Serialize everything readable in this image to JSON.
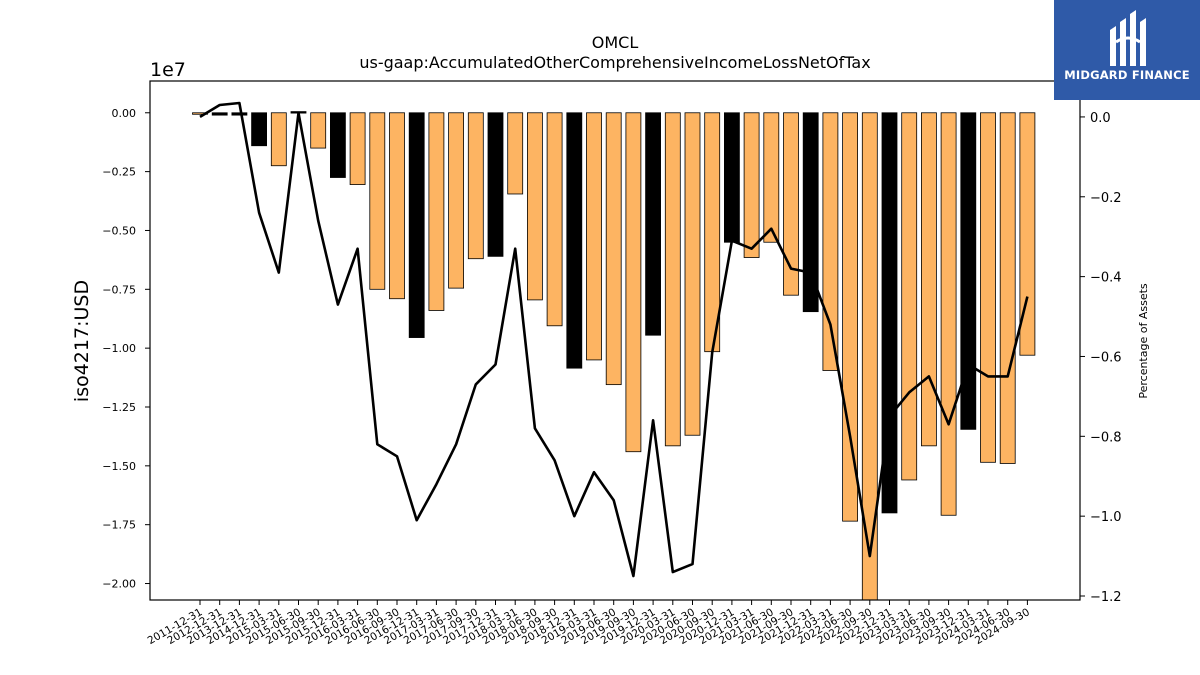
{
  "chart_data": {
    "type": "bar",
    "title": "OMCL",
    "subtitle": "us-gaap:AccumulatedOtherComprehensiveIncomeLossNetOfTax",
    "ylabel": "iso4217:USD",
    "y2label": "Percentage of Assets",
    "y_multiplier": "1e7",
    "ylim": [
      -20.7,
      1.35
    ],
    "y2lim": [
      -1.21,
      0.09
    ],
    "yticks": [
      "0.00",
      "−0.25",
      "−0.50",
      "−0.75",
      "−1.00",
      "−1.25",
      "−1.50",
      "−1.75",
      "−2.00"
    ],
    "y2ticks": [
      "0.0",
      "−0.2",
      "−0.4",
      "−0.6",
      "−0.8",
      "−1.0",
      "−1.2"
    ],
    "colors": {
      "orange": "#fdb462",
      "black": "#000000",
      "line": "#000000"
    },
    "categories": [
      "2011-12-31",
      "2012-12-31",
      "2013-12-31",
      "2014-12-31",
      "2015-03-31",
      "2015-06-30",
      "2015-09-30",
      "2015-12-31",
      "2016-03-31",
      "2016-06-30",
      "2016-09-30",
      "2016-12-31",
      "2017-03-31",
      "2017-06-30",
      "2017-09-30",
      "2017-12-31",
      "2018-03-31",
      "2018-06-30",
      "2018-09-30",
      "2018-12-31",
      "2019-03-31",
      "2019-06-30",
      "2019-09-30",
      "2019-12-31",
      "2020-03-31",
      "2020-06-30",
      "2020-09-30",
      "2020-12-31",
      "2021-03-31",
      "2021-06-30",
      "2021-09-30",
      "2021-12-31",
      "2022-03-31",
      "2022-06-30",
      "2022-09-30",
      "2022-12-31",
      "2023-03-31",
      "2023-06-30",
      "2023-09-30",
      "2023-12-31",
      "2024-03-31",
      "2024-06-30",
      "2024-09-30"
    ],
    "series": [
      {
        "type": "bar",
        "values": [
          -0.03,
          -0.1,
          -0.1,
          -1.4,
          -2.25,
          0.05,
          -1.5,
          -2.75,
          -3.05,
          -7.5,
          -7.9,
          -9.55,
          -8.4,
          -7.45,
          -6.2,
          -6.1,
          -3.45,
          -7.95,
          -9.05,
          -10.85,
          -10.5,
          -11.55,
          -14.4,
          -9.45,
          -14.15,
          -13.7,
          -10.15,
          -5.5,
          -6.15,
          -5.5,
          -7.75,
          -8.45,
          -10.95,
          -17.35,
          -20.7,
          -17.0,
          -15.6,
          -14.15,
          -17.1,
          -13.45,
          -14.85,
          -14.9,
          -10.3
        ],
        "colors": [
          "orange",
          "black",
          "black",
          "black",
          "orange",
          "black",
          "orange",
          "black",
          "orange",
          "orange",
          "orange",
          "black",
          "orange",
          "orange",
          "orange",
          "black",
          "orange",
          "orange",
          "orange",
          "black",
          "orange",
          "orange",
          "orange",
          "black",
          "orange",
          "orange",
          "orange",
          "black",
          "orange",
          "orange",
          "orange",
          "black",
          "orange",
          "orange",
          "orange",
          "black",
          "orange",
          "orange",
          "orange",
          "black",
          "orange",
          "orange",
          "orange"
        ]
      },
      {
        "type": "line",
        "axis": "right",
        "values": [
          0.0,
          0.03,
          0.035,
          -0.24,
          -0.39,
          0.01,
          -0.26,
          -0.47,
          -0.33,
          -0.82,
          -0.85,
          -1.01,
          -0.92,
          -0.82,
          -0.67,
          -0.62,
          -0.33,
          -0.78,
          -0.86,
          -1.0,
          -0.89,
          -0.96,
          -1.15,
          -0.76,
          -1.14,
          -1.12,
          -0.59,
          -0.31,
          -0.33,
          -0.28,
          -0.38,
          -0.39,
          -0.52,
          -0.8,
          -1.1,
          -0.75,
          -0.69,
          -0.65,
          -0.77,
          -0.62,
          -0.65,
          -0.65,
          -0.45
        ]
      }
    ]
  },
  "logo": {
    "text": "MIDGARD FINANCE"
  }
}
